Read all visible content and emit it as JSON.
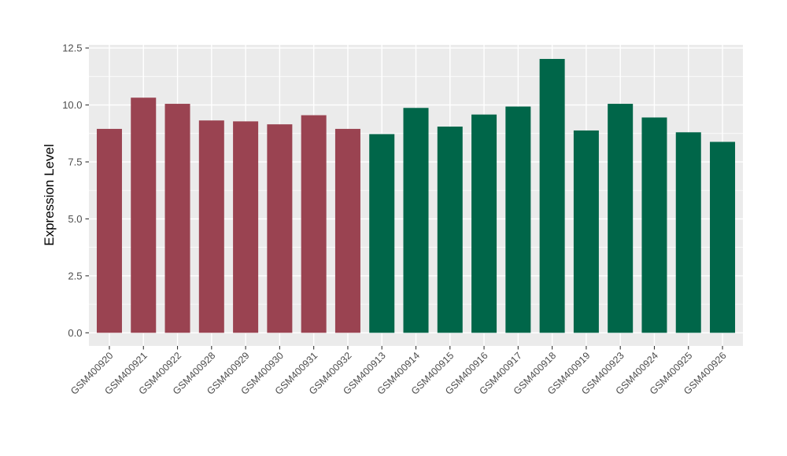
{
  "figure": {
    "background_color": "#FFFFFF",
    "panel_background": "#EBEBEB",
    "grid_color": "#FFFFFF",
    "tick_color": "#333333",
    "axis_text_color": "#4D4D4D",
    "axis_title_color": "#000000"
  },
  "chart_data": {
    "type": "bar",
    "title": "",
    "xlabel": "",
    "ylabel": "Expression Level",
    "ylim": [
      -0.6,
      12.64
    ],
    "yticks": [
      0,
      2.5,
      5,
      7.5,
      10,
      12.5
    ],
    "ytick_labels": [
      "0.0",
      "2.5",
      "5.0",
      "7.5",
      "10.0",
      "12.5"
    ],
    "yticks_minor": [
      1.25,
      3.75,
      6.25,
      8.75,
      11.25
    ],
    "grid": "horizontal major+minor and vertical major white gridlines on grey panel",
    "legend_position": "none",
    "x_label_rotation": -45,
    "categories": [
      "GSM400920",
      "GSM400921",
      "GSM400922",
      "GSM400928",
      "GSM400929",
      "GSM400930",
      "GSM400931",
      "GSM400932",
      "GSM400913",
      "GSM400914",
      "GSM400915",
      "GSM400916",
      "GSM400917",
      "GSM400918",
      "GSM400919",
      "GSM400923",
      "GSM400924",
      "GSM400925",
      "GSM400926"
    ],
    "values": [
      8.95,
      10.32,
      10.05,
      9.32,
      9.28,
      9.15,
      9.55,
      8.95,
      8.72,
      9.87,
      9.05,
      9.58,
      9.93,
      12.02,
      8.88,
      10.05,
      9.45,
      8.8,
      8.38
    ],
    "groups": [
      "maroon",
      "maroon",
      "maroon",
      "maroon",
      "maroon",
      "maroon",
      "maroon",
      "maroon",
      "green",
      "green",
      "green",
      "green",
      "green",
      "green",
      "green",
      "green",
      "green",
      "green",
      "green"
    ],
    "group_colors": {
      "maroon": "#9A4351",
      "green": "#006649"
    }
  }
}
